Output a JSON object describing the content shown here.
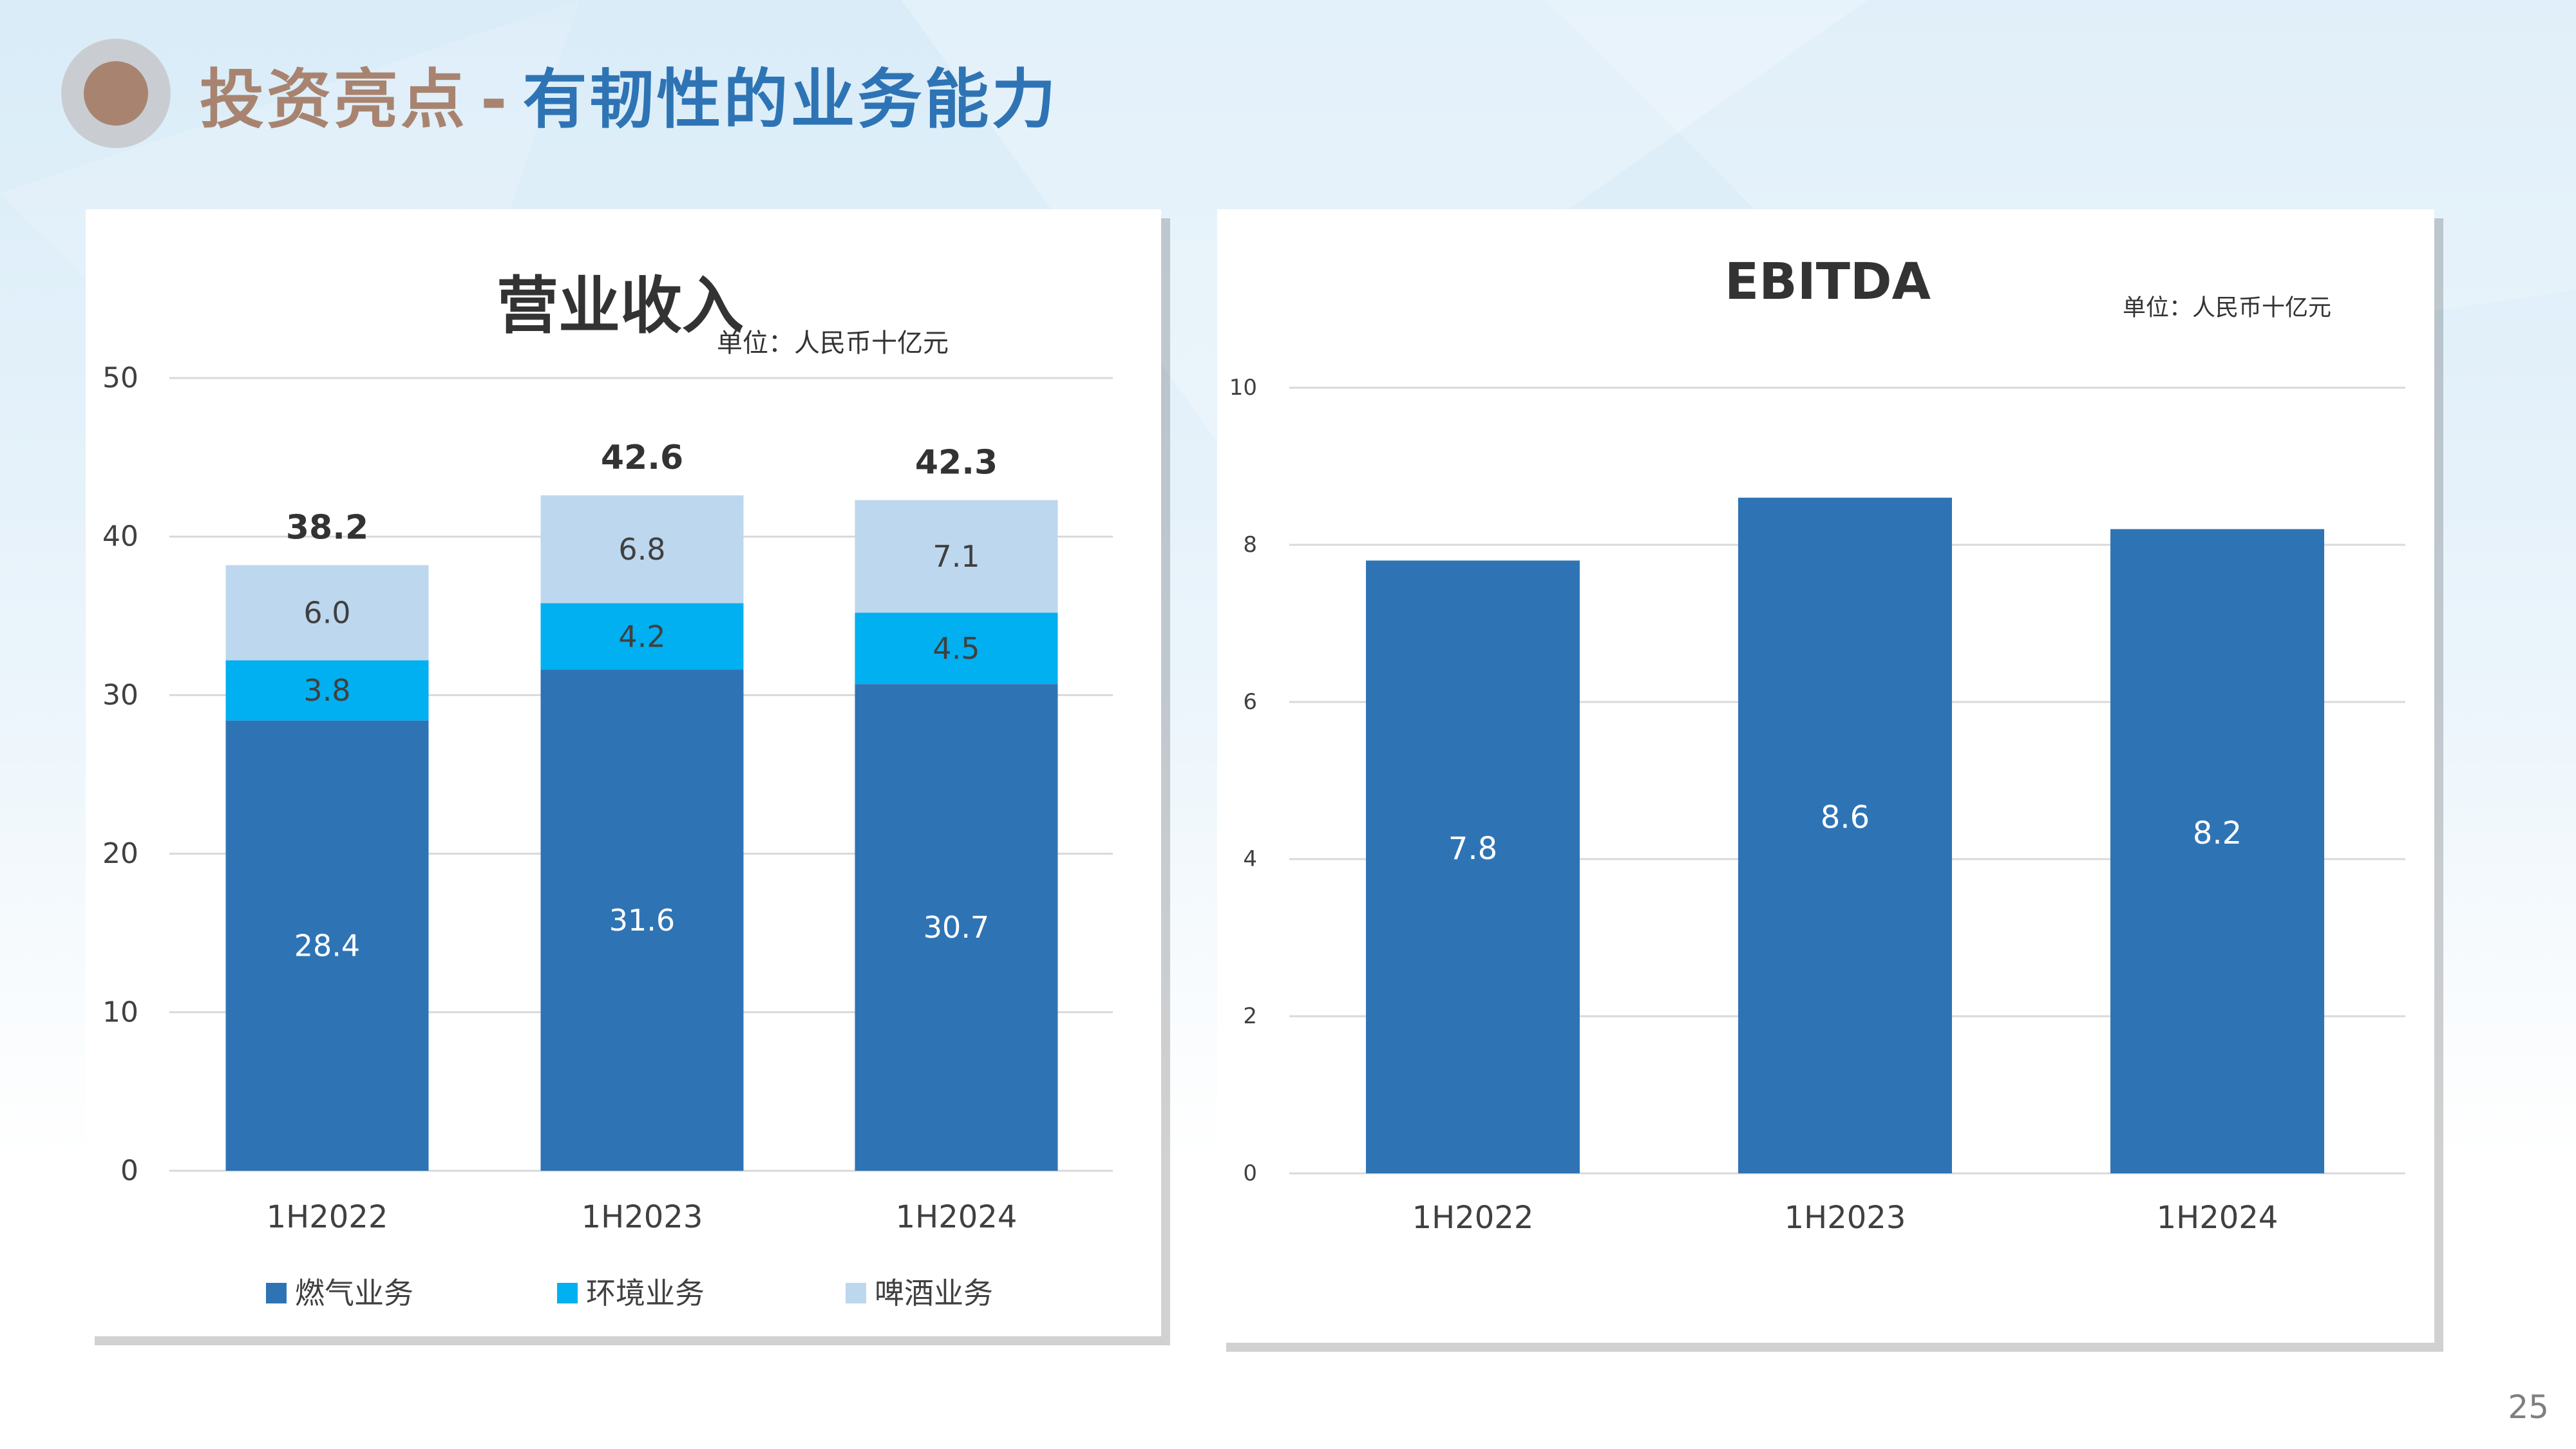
{
  "slide": {
    "title_main": "投资亮点",
    "title_sep": "-",
    "title_sub": "有韧性的业务能力",
    "page_number": "25"
  },
  "colors": {
    "gas": "#2e74b5",
    "environment": "#00b0f0",
    "beer": "#bdd7ee",
    "ebitda": "#2e74b5",
    "title_accent": "#a88470",
    "title_blue": "#2e74b5"
  },
  "chart_data": [
    {
      "type": "bar",
      "stacked": true,
      "title": "营业收入",
      "unit": "单位：人民币十亿元",
      "categories": [
        "1H2022",
        "1H2023",
        "1H2024"
      ],
      "series": [
        {
          "name": "燃气业务",
          "values": [
            28.4,
            31.6,
            30.7
          ],
          "labels": [
            "28.4",
            "31.6",
            "30.7"
          ]
        },
        {
          "name": "环境业务",
          "values": [
            3.8,
            4.2,
            4.5
          ],
          "labels": [
            "3.8",
            "4.2",
            "4.5"
          ]
        },
        {
          "name": "啤酒业务",
          "values": [
            6.0,
            6.8,
            7.1
          ],
          "labels": [
            "6.0",
            "6.8",
            "7.1"
          ]
        }
      ],
      "totals": [
        38.2,
        42.6,
        42.3
      ],
      "total_labels": [
        "38.2",
        "42.6",
        "42.3"
      ],
      "ylim": [
        0,
        50
      ],
      "yticks": [
        0,
        10,
        20,
        30,
        40,
        50
      ],
      "ytick_labels": [
        "0",
        "10",
        "20",
        "30",
        "40",
        "50"
      ],
      "grid": true,
      "legend": "bottom"
    },
    {
      "type": "bar",
      "title": "EBITDA",
      "unit": "单位：人民币十亿元",
      "categories": [
        "1H2022",
        "1H2023",
        "1H2024"
      ],
      "values": [
        7.8,
        8.6,
        8.2
      ],
      "value_labels": [
        "7.8",
        "8.6",
        "8.2"
      ],
      "ylim": [
        0,
        10
      ],
      "yticks": [
        0,
        2,
        4,
        6,
        8,
        10
      ],
      "ytick_labels": [
        "0",
        "2",
        "4",
        "6",
        "8",
        "10"
      ],
      "grid": true,
      "legend": "none"
    }
  ]
}
